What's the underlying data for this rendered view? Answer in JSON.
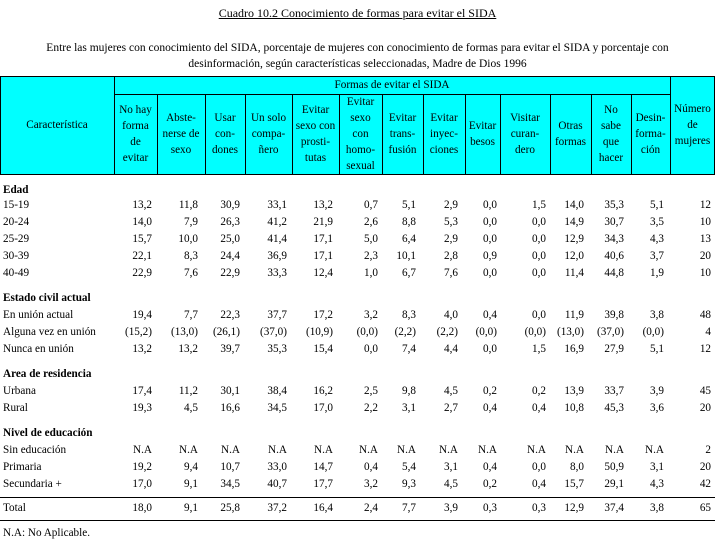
{
  "title": "Cuadro 10.2  Conocimiento de formas para evitar el SIDA",
  "subtitle_line1": "Entre las mujeres con conocimiento del SIDA, porcentaje de mujeres con conocimiento de formas para evitar  el SIDA y porcentaje con",
  "subtitle_line2": "desinformación, según características seleccionadas, Madre de Dios 1996",
  "header": {
    "caracteristica": "Característica",
    "group": "Formas de evitar el SIDA",
    "columns": [
      "No hay\nforma\nde\nevitar",
      "Abste-\nnerse de\nsexo",
      "Usar\ncon-\ndones",
      "Un solo\ncompa-\nñero",
      "Evitar\nsexo con\nprosti-\ntutas",
      "Evitar\nsexo\ncon\nhomo-\nsexual",
      "Evitar\ntrans-\nfusión",
      "Evitar\ninyec-\nciones",
      "Evitar\nbesos",
      "Visitar\ncuran-\ndero",
      "Otras\nformas",
      "No\nsabe\nque\nhacer",
      "Desin-\nforma-\nción"
    ],
    "numero": "Número\nde\nmujeres"
  },
  "rows": [
    {
      "label": "Edad",
      "section": true
    },
    {
      "label": "15-19",
      "values": [
        "13,2",
        "11,8",
        "30,9",
        "33,1",
        "13,2",
        "0,7",
        "5,1",
        "2,9",
        "0,0",
        "1,5",
        "14,0",
        "35,3",
        "5,1",
        "12"
      ]
    },
    {
      "label": "20-24",
      "values": [
        "14,0",
        "7,9",
        "26,3",
        "41,2",
        "21,9",
        "2,6",
        "8,8",
        "5,3",
        "0,0",
        "0,0",
        "14,9",
        "30,7",
        "3,5",
        "10"
      ]
    },
    {
      "label": "25-29",
      "values": [
        "15,7",
        "10,0",
        "25,0",
        "41,4",
        "17,1",
        "5,0",
        "6,4",
        "2,9",
        "0,0",
        "0,0",
        "12,9",
        "34,3",
        "4,3",
        "13"
      ]
    },
    {
      "label": "30-39",
      "values": [
        "22,1",
        "8,3",
        "24,4",
        "36,9",
        "17,1",
        "2,3",
        "10,1",
        "2,8",
        "0,9",
        "0,0",
        "12,0",
        "40,6",
        "3,7",
        "20"
      ]
    },
    {
      "label": "40-49",
      "values": [
        "22,9",
        "7,6",
        "22,9",
        "33,3",
        "12,4",
        "1,0",
        "6,7",
        "7,6",
        "0,0",
        "0,0",
        "11,4",
        "44,8",
        "1,9",
        "10"
      ]
    },
    {
      "label": "Estado civil actual",
      "section": true
    },
    {
      "label": "En unión actual",
      "values": [
        "19,4",
        "7,7",
        "22,3",
        "37,7",
        "17,2",
        "3,2",
        "8,3",
        "4,0",
        "0,4",
        "0,0",
        "11,9",
        "39,8",
        "3,8",
        "48"
      ]
    },
    {
      "label": "Alguna vez en unión",
      "values": [
        "(15,2)",
        "(13,0)",
        "(26,1)",
        "(37,0)",
        "(10,9)",
        "(0,0)",
        "(2,2)",
        "(2,2)",
        "(0,0)",
        "(0,0)",
        "(13,0)",
        "(37,0)",
        "(0,0)",
        "4"
      ]
    },
    {
      "label": "Nunca en unión",
      "values": [
        "13,2",
        "13,2",
        "39,7",
        "35,3",
        "15,4",
        "0,0",
        "7,4",
        "4,4",
        "0,0",
        "1,5",
        "16,9",
        "27,9",
        "5,1",
        "12"
      ]
    },
    {
      "label": "Area de residencia",
      "section": true
    },
    {
      "label": "Urbana",
      "values": [
        "17,4",
        "11,2",
        "30,1",
        "38,4",
        "16,2",
        "2,5",
        "9,8",
        "4,5",
        "0,2",
        "0,2",
        "13,9",
        "33,7",
        "3,9",
        "45"
      ]
    },
    {
      "label": "Rural",
      "values": [
        "19,3",
        "4,5",
        "16,6",
        "34,5",
        "17,0",
        "2,2",
        "3,1",
        "2,7",
        "0,4",
        "0,4",
        "10,8",
        "45,3",
        "3,6",
        "20"
      ]
    },
    {
      "label": "Nivel de educación",
      "section": true
    },
    {
      "label": "Sin educación",
      "values": [
        "N.A",
        "N.A",
        "N.A",
        "N.A",
        "N.A",
        "N.A",
        "N.A",
        "N.A",
        "N.A",
        "N.A",
        "N.A",
        "N.A",
        "N.A",
        "2"
      ]
    },
    {
      "label": "Primaria",
      "values": [
        "19,2",
        "9,4",
        "10,7",
        "33,0",
        "14,7",
        "0,4",
        "5,4",
        "3,1",
        "0,4",
        "0,0",
        "8,0",
        "50,9",
        "3,1",
        "20"
      ]
    },
    {
      "label": "Secundaria +",
      "values": [
        "17,0",
        "9,1",
        "34,5",
        "40,7",
        "17,7",
        "3,2",
        "9,3",
        "4,5",
        "0,2",
        "0,4",
        "15,7",
        "29,1",
        "4,3",
        "42"
      ]
    }
  ],
  "total": {
    "label": "Total",
    "values": [
      "18,0",
      "9,1",
      "25,8",
      "37,2",
      "16,4",
      "2,4",
      "7,7",
      "3,9",
      "0,3",
      "0,3",
      "12,9",
      "37,4",
      "3,8",
      "65"
    ]
  },
  "footnote": "N.A: No Aplicable."
}
